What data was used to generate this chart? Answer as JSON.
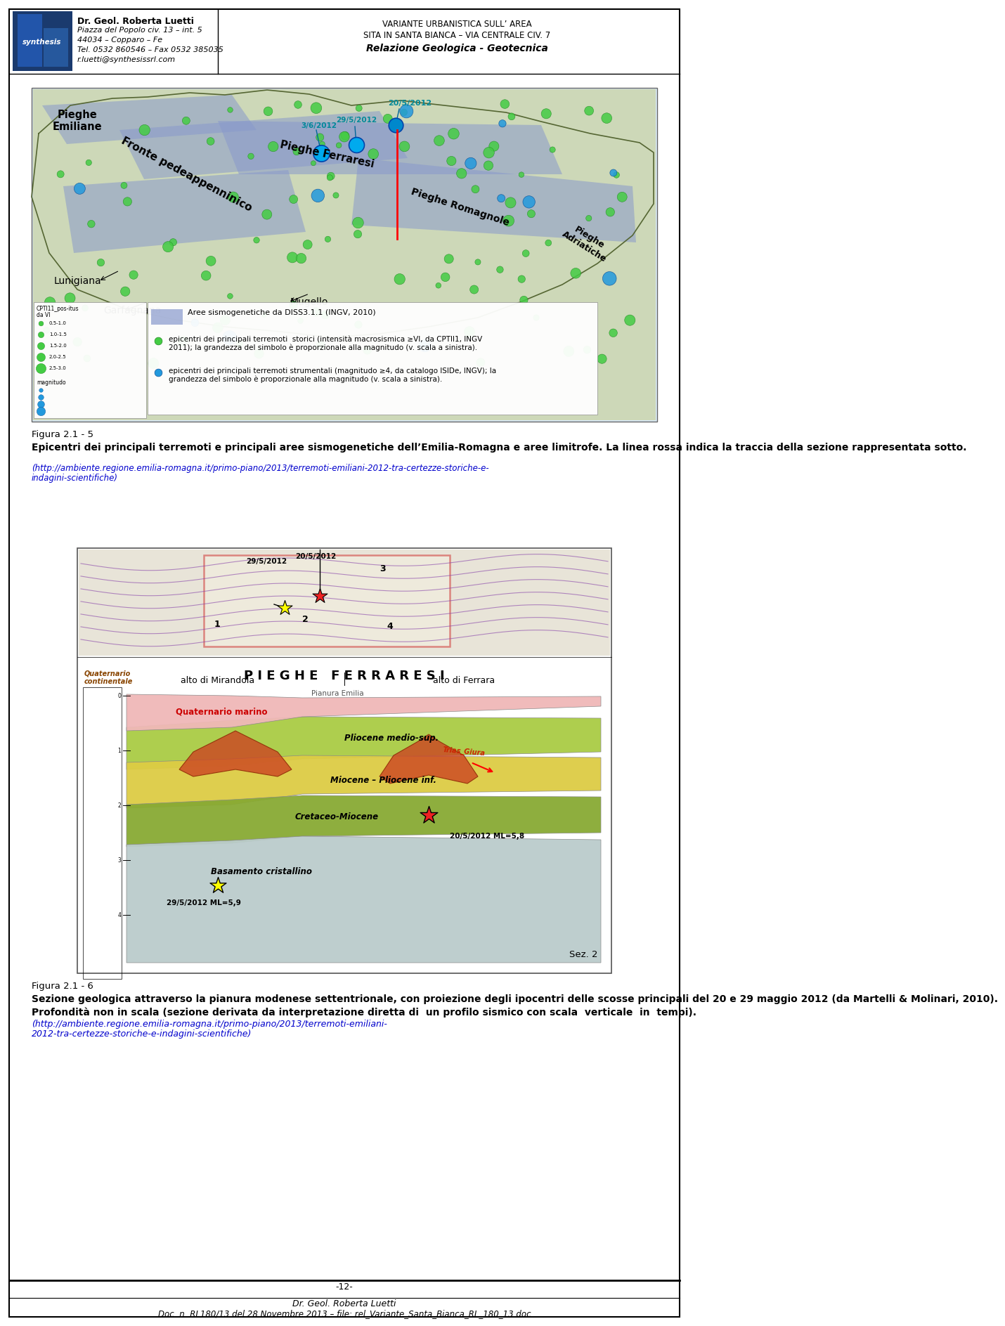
{
  "page_width": 9.6,
  "page_height": 18.67,
  "bg_color": "#ffffff",
  "header": {
    "left_bold": "Dr. Geol. Roberta Luetti",
    "left_lines": [
      "Piazza del Popolo civ. 13 – int. 5",
      "44034 – Copparo – Fe",
      "Tel. 0532 860546 – Fax 0532 385035",
      "r.luetti@synthesissrl.com"
    ],
    "right_lines": [
      "VARIANTE URBANISTICA SULL’ AREA",
      "SITA IN SANTA BIANCA – VIA CENTRALE CIV. 7",
      "Relazione Geologica - Geotecnica"
    ]
  },
  "figura_2_1_5": {
    "label": "Figura 2.1 - 5",
    "caption_bold": "Epicentri dei principali terremoti e principali aree sismogenetiche dell’Emilia-Romagna e aree limitrofe. La linea rossa indica la traccia della sezione rappresentata sotto.",
    "caption_url1": "(http://ambiente.regione.emilia-romagna.it/primo-piano/2013/terremoti-emiliani-2012-tra-certezze-storiche-e-",
    "caption_url2": "indagini-scientifiche)"
  },
  "figura_2_1_6": {
    "label": "Figura 2.1 - 6",
    "caption_bold1": "Sezione geologica attraverso la pianura modenese settentrionale, con proiezione degli ipocentri delle scosse principali del 20 e 29 maggio 2012 (da Martelli & Molinari, 2010).",
    "caption_bold2": "Profondità non in scala (sezione derivata da interpretazione diretta di  un profilo sismico con scala  verticale  in  tempi).",
    "caption_url1": "(http://ambiente.regione.emilia-romagna.it/primo-piano/2013/terremoti-emiliani-",
    "caption_url2": "2012-tra-certezze-storiche-e-indagini-scientifiche)"
  },
  "footer": {
    "page_number": "-12-",
    "line1": "Dr. Geol. Roberta Luetti",
    "line2": "Doc. n. RL180/13 del 28 Novembre 2013 – file: rel_Variante_Santa_Bianca_RL_180_13.doc"
  }
}
